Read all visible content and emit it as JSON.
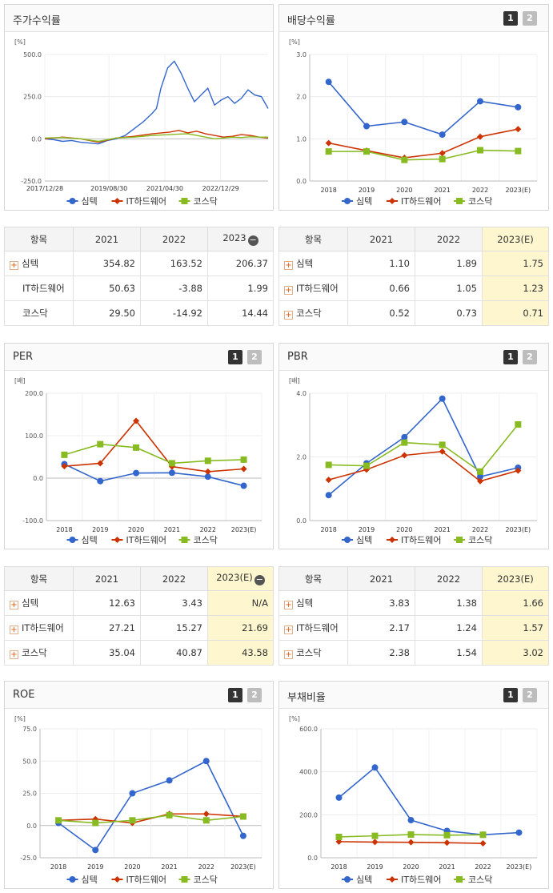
{
  "colors": {
    "simtek": "#3366cc",
    "it": "#cc3300",
    "kosdaq": "#88bb22"
  },
  "legend": [
    "심텍",
    "IT하드웨어",
    "코스닥"
  ],
  "pager": [
    "1",
    "2"
  ],
  "chart_data": [
    {
      "id": "stock",
      "type": "line",
      "title": "주가수익률",
      "unit": "[%]",
      "ylim": [
        -250,
        500
      ],
      "yticks": [
        "500.0",
        "250.0",
        "0.0",
        "-250.0"
      ],
      "xlabels": [
        "2017/12/28",
        "2019/08/30",
        "2021/04/30",
        "2022/12/29"
      ],
      "series": [
        {
          "name": "심텍",
          "x": [
            0,
            4,
            8,
            12,
            16,
            20,
            24,
            28,
            32,
            36,
            40,
            44,
            48,
            50,
            52,
            55,
            58,
            61,
            64,
            67,
            70,
            73,
            76,
            79,
            82,
            85,
            88,
            91,
            94,
            97,
            100
          ],
          "values": [
            0,
            -5,
            -15,
            -10,
            -20,
            -25,
            -30,
            -10,
            0,
            20,
            60,
            100,
            150,
            180,
            300,
            420,
            460,
            390,
            300,
            220,
            260,
            300,
            200,
            230,
            250,
            210,
            240,
            290,
            260,
            250,
            180
          ]
        },
        {
          "name": "IT하드웨어",
          "x": [
            0,
            8,
            16,
            24,
            32,
            40,
            48,
            56,
            60,
            64,
            68,
            72,
            76,
            80,
            84,
            88,
            92,
            96,
            100
          ],
          "values": [
            0,
            10,
            0,
            -20,
            5,
            15,
            30,
            40,
            50,
            35,
            45,
            30,
            20,
            10,
            15,
            25,
            20,
            10,
            5
          ]
        },
        {
          "name": "코스닥",
          "x": [
            0,
            8,
            16,
            24,
            32,
            40,
            48,
            56,
            60,
            64,
            68,
            72,
            76,
            80,
            84,
            88,
            92,
            96,
            100
          ],
          "values": [
            5,
            8,
            0,
            -15,
            5,
            10,
            20,
            25,
            28,
            30,
            20,
            10,
            0,
            5,
            10,
            8,
            12,
            10,
            10
          ]
        }
      ]
    },
    {
      "id": "dividend",
      "type": "line",
      "title": "배당수익률",
      "unit": "[%]",
      "ylim": [
        0,
        3
      ],
      "yticks": [
        "3.0",
        "2.0",
        "1.0",
        "0.0"
      ],
      "categories": [
        "2018",
        "2019",
        "2020",
        "2021",
        "2022",
        "2023(E)"
      ],
      "series": [
        {
          "name": "심텍",
          "values": [
            2.35,
            1.3,
            1.4,
            1.1,
            1.89,
            1.75
          ]
        },
        {
          "name": "IT하드웨어",
          "values": [
            0.9,
            0.72,
            0.55,
            0.66,
            1.05,
            1.23
          ]
        },
        {
          "name": "코스닥",
          "values": [
            0.7,
            0.7,
            0.5,
            0.52,
            0.73,
            0.71
          ]
        }
      ]
    },
    {
      "id": "per",
      "type": "line",
      "title": "PER",
      "unit": "[배]",
      "ylim": [
        -100,
        200
      ],
      "yticks": [
        "200.0",
        "100.0",
        "0.0",
        "-100.0"
      ],
      "categories": [
        "2018",
        "2019",
        "2020",
        "2021",
        "2022",
        "2023(E)"
      ],
      "series": [
        {
          "name": "심텍",
          "values": [
            33,
            -7,
            12,
            12.63,
            3.43,
            -18
          ]
        },
        {
          "name": "IT하드웨어",
          "values": [
            28,
            35,
            135,
            27.21,
            15.27,
            21.69
          ]
        },
        {
          "name": "코스닥",
          "values": [
            55,
            80,
            72,
            35.04,
            40.87,
            43.58
          ]
        }
      ]
    },
    {
      "id": "pbr",
      "type": "line",
      "title": "PBR",
      "unit": "[배]",
      "ylim": [
        0,
        4
      ],
      "yticks": [
        "4.0",
        "2.0",
        "0.0"
      ],
      "categories": [
        "2018",
        "2019",
        "2020",
        "2021",
        "2022",
        "2023(E)"
      ],
      "series": [
        {
          "name": "심텍",
          "values": [
            0.8,
            1.8,
            2.62,
            3.83,
            1.38,
            1.66
          ]
        },
        {
          "name": "IT하드웨어",
          "values": [
            1.28,
            1.6,
            2.05,
            2.17,
            1.24,
            1.57
          ]
        },
        {
          "name": "코스닥",
          "values": [
            1.75,
            1.72,
            2.45,
            2.38,
            1.54,
            3.02
          ]
        }
      ]
    },
    {
      "id": "roe",
      "type": "line",
      "title": "ROE",
      "unit": "[%]",
      "ylim": [
        -25,
        75
      ],
      "yticks": [
        "75.0",
        "50.0",
        "25.0",
        "0.0",
        "-25.0"
      ],
      "categories": [
        "2018",
        "2019",
        "2020",
        "2021",
        "2022",
        "2023(E)"
      ],
      "series": [
        {
          "name": "심텍",
          "values": [
            2,
            -19,
            25,
            35,
            50,
            -8
          ]
        },
        {
          "name": "IT하드웨어",
          "values": [
            4,
            5,
            2,
            9,
            9,
            7
          ]
        },
        {
          "name": "코스닥",
          "values": [
            4,
            2,
            4,
            8,
            4,
            7
          ]
        }
      ]
    },
    {
      "id": "debt",
      "type": "line",
      "title": "부채비율",
      "unit": "[%]",
      "ylim": [
        0,
        600
      ],
      "yticks": [
        "600.0",
        "400.0",
        "200.0",
        "0.0"
      ],
      "categories": [
        "2018",
        "2019",
        "2020",
        "2021",
        "2022",
        "2023(E)"
      ],
      "series": [
        {
          "name": "심텍",
          "values": [
            280,
            420,
            175,
            125,
            107,
            117
          ]
        },
        {
          "name": "IT하드웨어",
          "values": [
            75,
            73,
            72,
            70,
            67,
            null
          ]
        },
        {
          "name": "코스닥",
          "values": [
            97,
            102,
            108,
            105,
            107,
            null
          ]
        }
      ]
    }
  ],
  "tables": {
    "stock": {
      "head": [
        "항목",
        "2021",
        "2022",
        "2023"
      ],
      "rows": [
        [
          "심텍",
          "354.82",
          "163.52",
          "206.37"
        ],
        [
          "IT하드웨어",
          "50.63",
          "-3.88",
          "1.99"
        ],
        [
          "코스닥",
          "29.50",
          "-14.92",
          "14.44"
        ]
      ]
    },
    "dividend": {
      "head": [
        "항목",
        "2021",
        "2022",
        "2023(E)"
      ],
      "rows": [
        [
          "심텍",
          "1.10",
          "1.89",
          "1.75"
        ],
        [
          "IT하드웨어",
          "0.66",
          "1.05",
          "1.23"
        ],
        [
          "코스닥",
          "0.52",
          "0.73",
          "0.71"
        ]
      ]
    },
    "per": {
      "head": [
        "항목",
        "2021",
        "2022",
        "2023(E)"
      ],
      "rows": [
        [
          "심텍",
          "12.63",
          "3.43",
          "N/A"
        ],
        [
          "IT하드웨어",
          "27.21",
          "15.27",
          "21.69"
        ],
        [
          "코스닥",
          "35.04",
          "40.87",
          "43.58"
        ]
      ]
    },
    "pbr": {
      "head": [
        "항목",
        "2021",
        "2022",
        "2023(E)"
      ],
      "rows": [
        [
          "심텍",
          "3.83",
          "1.38",
          "1.66"
        ],
        [
          "IT하드웨어",
          "2.17",
          "1.24",
          "1.57"
        ],
        [
          "코스닥",
          "2.38",
          "1.54",
          "3.02"
        ]
      ]
    }
  }
}
